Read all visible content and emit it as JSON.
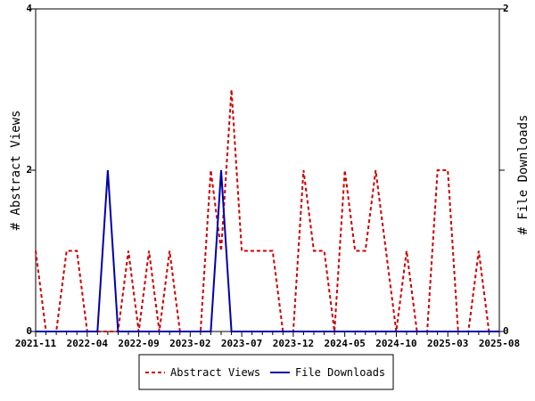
{
  "chart_data": {
    "type": "line",
    "x": [
      "2021-11",
      "2021-12",
      "2022-01",
      "2022-02",
      "2022-03",
      "2022-04",
      "2022-05",
      "2022-06",
      "2022-07",
      "2022-08",
      "2022-09",
      "2022-10",
      "2022-11",
      "2022-12",
      "2023-01",
      "2023-02",
      "2023-03",
      "2023-04",
      "2023-05",
      "2023-06",
      "2023-07",
      "2023-08",
      "2023-09",
      "2023-10",
      "2023-11",
      "2023-12",
      "2024-01",
      "2024-02",
      "2024-03",
      "2024-04",
      "2024-05",
      "2024-06",
      "2024-07",
      "2024-08",
      "2024-09",
      "2024-10",
      "2024-11",
      "2024-12",
      "2025-01",
      "2025-02",
      "2025-03",
      "2025-04",
      "2025-05",
      "2025-06",
      "2025-07",
      "2025-08"
    ],
    "x_tick_labels": [
      "2021-11",
      "2022-04",
      "2022-09",
      "2023-02",
      "2023-07",
      "2023-12",
      "2024-05",
      "2024-10",
      "2025-03",
      "2025-08"
    ],
    "series": [
      {
        "name": "Abstract Views",
        "axis": "left",
        "color": "#cc0000",
        "dash": true,
        "values": [
          1,
          0,
          0,
          1,
          1,
          0,
          0,
          0,
          0,
          1,
          0,
          1,
          0,
          1,
          0,
          0,
          0,
          2,
          1,
          3,
          1,
          1,
          1,
          1,
          0,
          0,
          2,
          1,
          1,
          0,
          2,
          1,
          1,
          2,
          1,
          0,
          1,
          0,
          0,
          2,
          2,
          0,
          0,
          1,
          0,
          0
        ]
      },
      {
        "name": "File Downloads",
        "axis": "right",
        "color": "#0000aa",
        "dash": false,
        "values": [
          0,
          0,
          0,
          0,
          0,
          0,
          0,
          1,
          0,
          0,
          0,
          0,
          0,
          0,
          0,
          0,
          0,
          0,
          1,
          0,
          0,
          0,
          0,
          0,
          0,
          0,
          0,
          0,
          0,
          0,
          0,
          0,
          0,
          0,
          0,
          0,
          0,
          0,
          0,
          0,
          0,
          0,
          0,
          0,
          0,
          0
        ]
      }
    ],
    "y_left": {
      "label": "# Abstract Views",
      "ticks": [
        "0",
        "2",
        "4"
      ],
      "range": [
        0,
        4
      ]
    },
    "y_right": {
      "label": "# File Downloads",
      "ticks": [
        "0",
        "1",
        "2"
      ],
      "range": [
        0,
        2
      ]
    },
    "legend_position": "bottom-center",
    "grid": false
  }
}
